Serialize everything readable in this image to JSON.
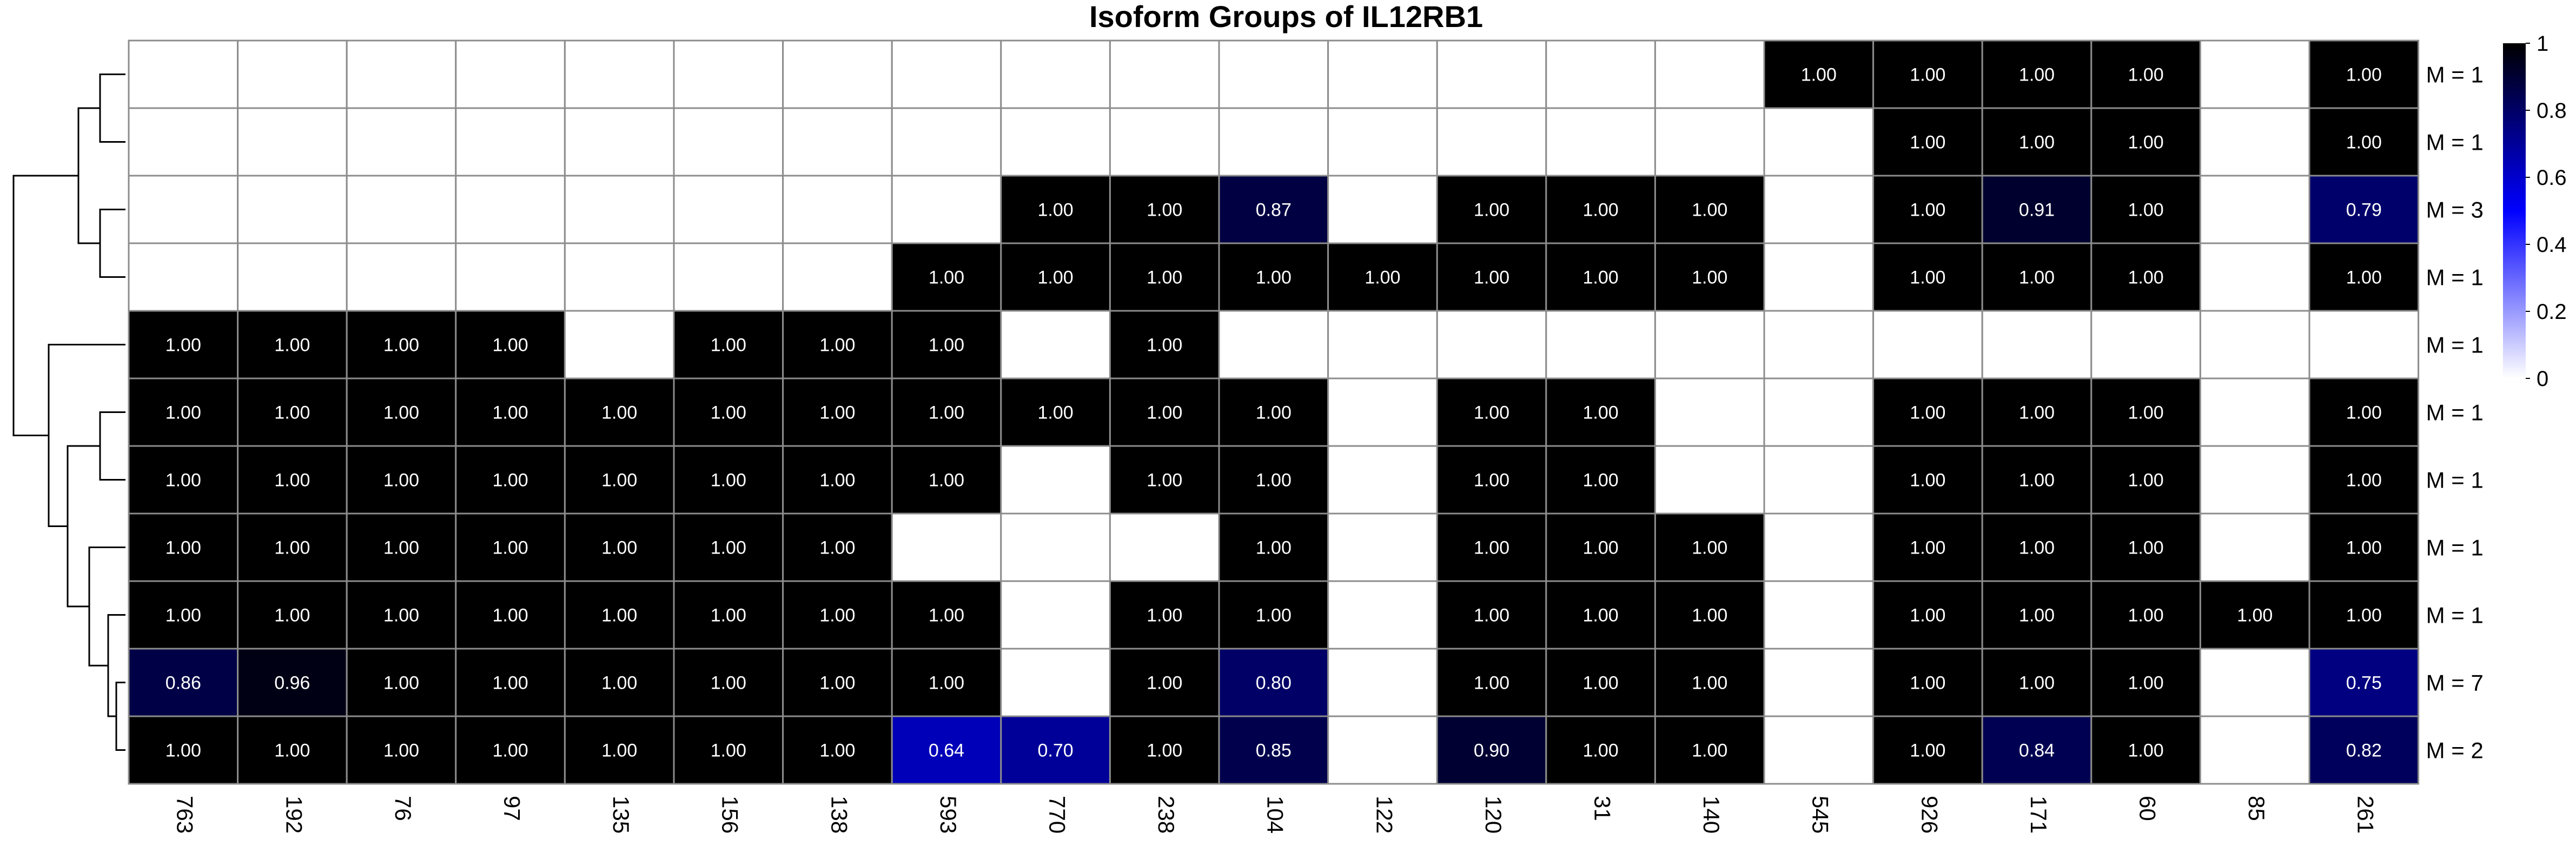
{
  "chart_data": {
    "type": "heatmap",
    "title": "Isoform Groups of IL12RB1",
    "columns": [
      "763",
      "192",
      "76",
      "97",
      "135",
      "156",
      "138",
      "593",
      "770",
      "238",
      "104",
      "122",
      "120",
      "31",
      "140",
      "545",
      "926",
      "171",
      "60",
      "85",
      "261"
    ],
    "rows": [
      "M = 1",
      "M = 1",
      "M = 3",
      "M = 1",
      "M = 1",
      "M = 1",
      "M = 1",
      "M = 1",
      "M = 1",
      "M = 7",
      "M = 2"
    ],
    "values": [
      [
        null,
        null,
        null,
        null,
        null,
        null,
        null,
        null,
        null,
        null,
        null,
        null,
        null,
        null,
        null,
        1.0,
        1.0,
        1.0,
        1.0,
        null,
        1.0
      ],
      [
        null,
        null,
        null,
        null,
        null,
        null,
        null,
        null,
        null,
        null,
        null,
        null,
        null,
        null,
        null,
        null,
        1.0,
        1.0,
        1.0,
        null,
        1.0
      ],
      [
        null,
        null,
        null,
        null,
        null,
        null,
        null,
        null,
        1.0,
        1.0,
        0.87,
        null,
        1.0,
        1.0,
        1.0,
        null,
        1.0,
        0.91,
        1.0,
        null,
        0.79
      ],
      [
        null,
        null,
        null,
        null,
        null,
        null,
        null,
        1.0,
        1.0,
        1.0,
        1.0,
        1.0,
        1.0,
        1.0,
        1.0,
        null,
        1.0,
        1.0,
        1.0,
        null,
        1.0
      ],
      [
        1.0,
        1.0,
        1.0,
        1.0,
        null,
        1.0,
        1.0,
        1.0,
        null,
        1.0,
        null,
        null,
        null,
        null,
        null,
        null,
        null,
        null,
        null,
        null,
        null
      ],
      [
        1.0,
        1.0,
        1.0,
        1.0,
        1.0,
        1.0,
        1.0,
        1.0,
        1.0,
        1.0,
        1.0,
        null,
        1.0,
        1.0,
        null,
        null,
        1.0,
        1.0,
        1.0,
        null,
        1.0
      ],
      [
        1.0,
        1.0,
        1.0,
        1.0,
        1.0,
        1.0,
        1.0,
        1.0,
        null,
        1.0,
        1.0,
        null,
        1.0,
        1.0,
        null,
        null,
        1.0,
        1.0,
        1.0,
        null,
        1.0
      ],
      [
        1.0,
        1.0,
        1.0,
        1.0,
        1.0,
        1.0,
        1.0,
        null,
        null,
        null,
        1.0,
        null,
        1.0,
        1.0,
        1.0,
        null,
        1.0,
        1.0,
        1.0,
        null,
        1.0
      ],
      [
        1.0,
        1.0,
        1.0,
        1.0,
        1.0,
        1.0,
        1.0,
        1.0,
        null,
        1.0,
        1.0,
        null,
        1.0,
        1.0,
        1.0,
        null,
        1.0,
        1.0,
        1.0,
        1.0,
        1.0
      ],
      [
        0.86,
        0.96,
        1.0,
        1.0,
        1.0,
        1.0,
        1.0,
        1.0,
        null,
        1.0,
        0.8,
        null,
        1.0,
        1.0,
        1.0,
        null,
        1.0,
        1.0,
        1.0,
        null,
        0.75
      ],
      [
        1.0,
        1.0,
        1.0,
        1.0,
        1.0,
        1.0,
        1.0,
        0.64,
        0.7,
        1.0,
        0.85,
        null,
        0.9,
        1.0,
        1.0,
        null,
        1.0,
        0.84,
        1.0,
        null,
        0.82
      ]
    ],
    "value_range": [
      0,
      1
    ],
    "colorscale": [
      [
        0,
        "#ffffff"
      ],
      [
        0.5,
        "#0000ff"
      ],
      [
        1,
        "#000000"
      ]
    ],
    "legend": {
      "ticks": [
        "1",
        "0.8",
        "0.6",
        "0.4",
        "0.2",
        "0"
      ],
      "placement": "right"
    },
    "row_dendrogram": true,
    "grid": true,
    "grid_color": "#8c8c8c"
  }
}
